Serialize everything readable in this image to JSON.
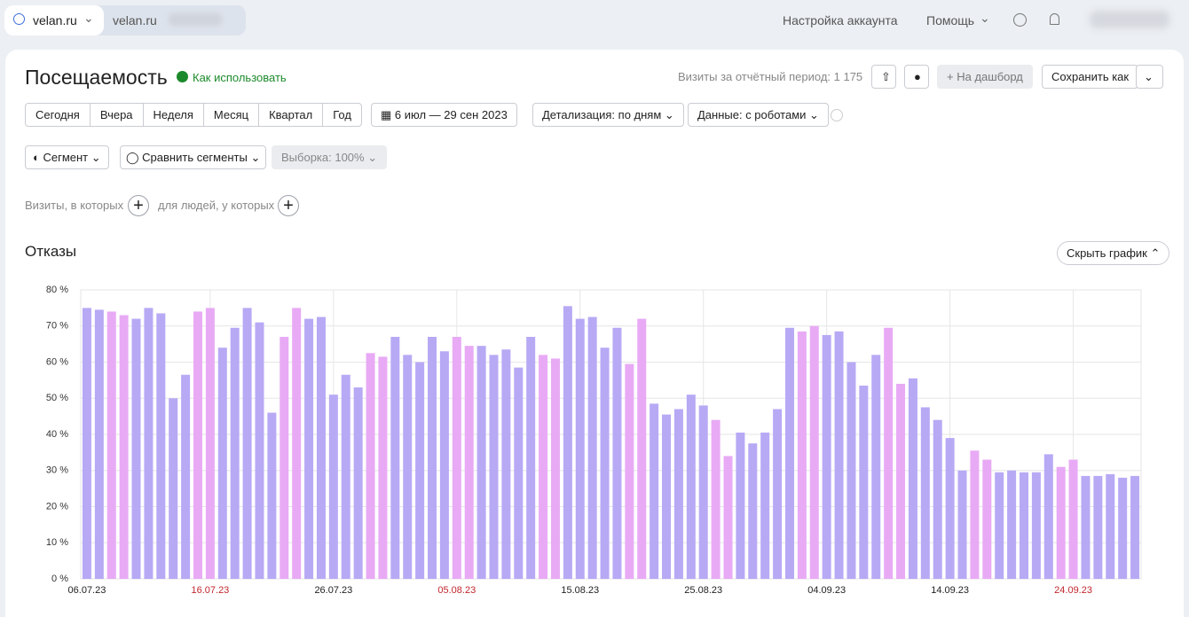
{
  "header": {
    "site": "velan.ru",
    "counter": "velan.ru",
    "account_settings": "Настройка аккаунта",
    "help": "Помощь"
  },
  "report": {
    "title": "Посещаемость",
    "how_to": "Как использовать",
    "visits_total": "Визиты за отчётный период: 1 175",
    "to_dashboard": "На дашборд",
    "save_as": "Сохранить как"
  },
  "periods": [
    "Сегодня",
    "Вчера",
    "Неделя",
    "Месяц",
    "Квартал",
    "Год"
  ],
  "date_range": "6 июл — 29 сен 2023",
  "detail": "Детализация: по дням",
  "data_mode": "Данные: с роботами",
  "segment": "Сегмент",
  "compare": "Сравнить сегменты",
  "sample": "Выборка: 100%",
  "filter_visits": "Визиты, в которых",
  "filter_people": "для людей, у которых",
  "section_title": "Отказы",
  "hide_chart": "Скрыть график",
  "chart_data": {
    "type": "bar",
    "categories": [
      "06.07.23",
      null,
      null,
      null,
      null,
      null,
      null,
      null,
      null,
      null,
      "16.07.23",
      null,
      null,
      null,
      null,
      null,
      null,
      null,
      null,
      null,
      "26.07.23",
      null,
      null,
      null,
      null,
      null,
      null,
      null,
      null,
      null,
      "05.08.23",
      null,
      null,
      null,
      null,
      null,
      null,
      null,
      null,
      null,
      "15.08.23",
      null,
      null,
      null,
      null,
      null,
      null,
      null,
      null,
      null,
      "25.08.23",
      null,
      null,
      null,
      null,
      null,
      null,
      null,
      null,
      null,
      "04.09.23",
      null,
      null,
      null,
      null,
      null,
      null,
      null,
      null,
      null,
      "14.09.23",
      null,
      null,
      null,
      null,
      null,
      null,
      null,
      null,
      null,
      "24.09.23",
      null,
      null,
      null,
      null,
      null
    ],
    "values": [
      75,
      74.5,
      74,
      73,
      72,
      75,
      73.5,
      50,
      56.5,
      74,
      75,
      64,
      69.5,
      75,
      71,
      46,
      67,
      75,
      72,
      72.5,
      51,
      56.5,
      53,
      62.5,
      61.5,
      67,
      62,
      60,
      67,
      63,
      67,
      64.5,
      64.5,
      62,
      63.5,
      58.5,
      67,
      62,
      61,
      75.5,
      72,
      72.5,
      64,
      69.5,
      59.5,
      72,
      48.5,
      45.5,
      47,
      51,
      48,
      44,
      34,
      40.5,
      37.5,
      40.5,
      47,
      69.5,
      68.5,
      70,
      67.5,
      68.5,
      60,
      53.5,
      62,
      69.5,
      54,
      55.5,
      47.5,
      44,
      39,
      30,
      35.5,
      33,
      29.5,
      30,
      29.5,
      29.5,
      34.5,
      31,
      33,
      28.5,
      28.5,
      29,
      28,
      28.5
    ],
    "color": "#b8a9f5",
    "colors": [
      "#b8a9f5",
      "#b8a9f5",
      "#e8aaf5",
      "#e8aaf5",
      "#b8a9f5",
      "#b8a9f5",
      "#b8a9f5",
      "#b8a9f5",
      "#b8a9f5",
      "#e8aaf5",
      "#e8aaf5",
      "#b8a9f5",
      "#b8a9f5",
      "#b8a9f5",
      "#b8a9f5",
      "#b8a9f5",
      "#e8aaf5",
      "#e8aaf5",
      "#b8a9f5",
      "#b8a9f5",
      "#b8a9f5",
      "#b8a9f5",
      "#b8a9f5",
      "#e8aaf5",
      "#e8aaf5",
      "#b8a9f5",
      "#b8a9f5",
      "#b8a9f5",
      "#b8a9f5",
      "#b8a9f5",
      "#e8aaf5",
      "#e8aaf5",
      "#b8a9f5",
      "#b8a9f5",
      "#b8a9f5",
      "#b8a9f5",
      "#b8a9f5",
      "#e8aaf5",
      "#e8aaf5",
      "#b8a9f5",
      "#b8a9f5",
      "#b8a9f5",
      "#b8a9f5",
      "#b8a9f5",
      "#e8aaf5",
      "#e8aaf5",
      "#b8a9f5",
      "#b8a9f5",
      "#b8a9f5",
      "#b8a9f5",
      "#b8a9f5",
      "#e8aaf5",
      "#e8aaf5",
      "#b8a9f5",
      "#b8a9f5",
      "#b8a9f5",
      "#b8a9f5",
      "#b8a9f5",
      "#e8aaf5",
      "#e8aaf5",
      "#b8a9f5",
      "#b8a9f5",
      "#b8a9f5",
      "#b8a9f5",
      "#b8a9f5",
      "#e8aaf5",
      "#e8aaf5",
      "#b8a9f5",
      "#b8a9f5",
      "#b8a9f5",
      "#b8a9f5",
      "#b8a9f5",
      "#e8aaf5",
      "#e8aaf5",
      "#b8a9f5",
      "#b8a9f5",
      "#b8a9f5",
      "#b8a9f5",
      "#b8a9f5",
      "#e8aaf5",
      "#e8aaf5",
      "#b8a9f5",
      "#b8a9f5",
      "#b8a9f5",
      "#b8a9f5",
      "#b8a9f5"
    ],
    "ylim": [
      0,
      80
    ],
    "yticks": [
      {
        "value": 0,
        "label": "0 %"
      },
      {
        "value": 10,
        "label": "10 %"
      },
      {
        "value": 20,
        "label": "20 %"
      },
      {
        "value": 30,
        "label": "30 %"
      },
      {
        "value": 40,
        "label": "40 %"
      },
      {
        "value": 50,
        "label": "50 %"
      },
      {
        "value": 60,
        "label": "60 %"
      },
      {
        "value": 70,
        "label": "70 %"
      },
      {
        "value": 80,
        "label": "80 %"
      }
    ],
    "grid": true
  }
}
